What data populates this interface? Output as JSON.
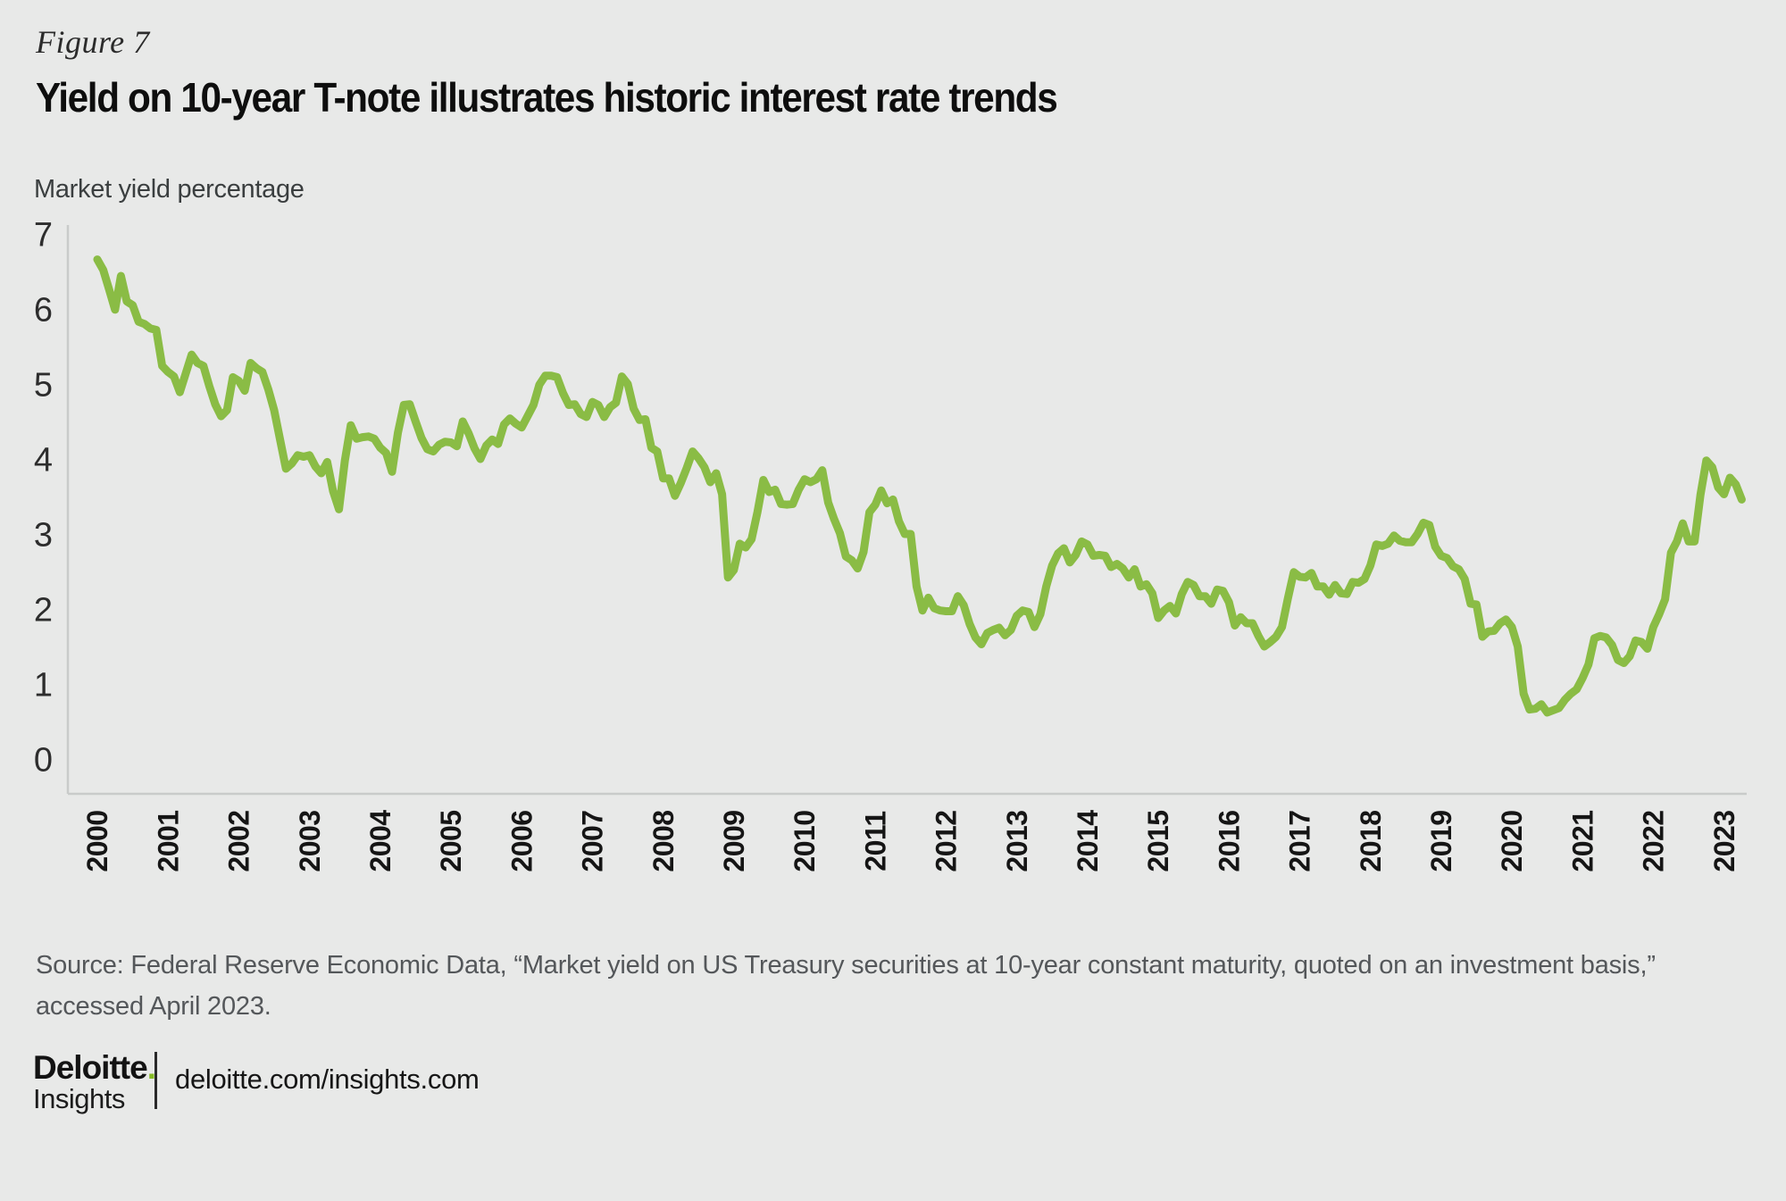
{
  "figure_label": "Figure 7",
  "title": "Yield on 10-year T-note illustrates historic interest rate trends",
  "y_axis_title": "Market yield percentage",
  "source_line1": "Source: Federal Reserve Economic Data, “Market yield on US Treasury securities at 10-year constant maturity, quoted on an investment basis,”",
  "source_line2": "accessed April 2023.",
  "footer": {
    "brand": "Deloitte",
    "brand_dot": ".",
    "brand_sub": "Insights",
    "url": "deloitte.com/insights.com"
  },
  "colors": {
    "background": "#E8E9E8",
    "line": "#8ABC45",
    "axis": "#C9CBCA",
    "brand_dot_green": "#86BC25"
  },
  "chart_data": {
    "type": "line",
    "title": "Yield on 10-year T-note illustrates historic interest rate trends",
    "ylabel": "Market yield percentage",
    "xlabel": "",
    "frequency": "monthly",
    "x_start": "2000-01",
    "x_end": "2023-04",
    "ylim": [
      0,
      7
    ],
    "yticks": [
      0,
      1,
      2,
      3,
      4,
      5,
      6,
      7
    ],
    "grid": false,
    "legend": "none",
    "years": [
      2000,
      2001,
      2002,
      2003,
      2004,
      2005,
      2006,
      2007,
      2008,
      2009,
      2010,
      2011,
      2012,
      2013,
      2014,
      2015,
      2016,
      2017,
      2018,
      2019,
      2020,
      2021,
      2022,
      2023
    ],
    "line_color": "#8ABC45",
    "series": [
      {
        "name": "Market yield on US Treasury securities at 10-year constant maturity (%)",
        "values": [
          6.66,
          6.52,
          6.26,
          5.99,
          6.44,
          6.1,
          6.05,
          5.83,
          5.8,
          5.74,
          5.72,
          5.24,
          5.16,
          5.1,
          4.89,
          5.14,
          5.39,
          5.28,
          5.24,
          4.97,
          4.73,
          4.57,
          4.65,
          5.09,
          5.04,
          4.91,
          5.28,
          5.21,
          5.16,
          4.93,
          4.65,
          4.26,
          3.87,
          3.94,
          4.05,
          4.03,
          4.05,
          3.9,
          3.81,
          3.96,
          3.57,
          3.33,
          3.98,
          4.45,
          4.27,
          4.29,
          4.3,
          4.27,
          4.15,
          4.08,
          3.83,
          4.35,
          4.72,
          4.73,
          4.5,
          4.28,
          4.13,
          4.1,
          4.19,
          4.23,
          4.22,
          4.17,
          4.5,
          4.34,
          4.14,
          4.0,
          4.18,
          4.26,
          4.2,
          4.46,
          4.54,
          4.47,
          4.42,
          4.57,
          4.72,
          4.99,
          5.11,
          5.11,
          5.09,
          4.88,
          4.72,
          4.73,
          4.6,
          4.56,
          4.76,
          4.72,
          4.56,
          4.69,
          4.75,
          5.1,
          5.0,
          4.67,
          4.52,
          4.53,
          4.15,
          4.1,
          3.74,
          3.74,
          3.51,
          3.68,
          3.88,
          4.1,
          4.01,
          3.89,
          3.69,
          3.81,
          3.53,
          2.42,
          2.52,
          2.87,
          2.82,
          2.93,
          3.29,
          3.72,
          3.56,
          3.59,
          3.4,
          3.39,
          3.4,
          3.59,
          3.73,
          3.69,
          3.73,
          3.85,
          3.42,
          3.2,
          3.01,
          2.7,
          2.65,
          2.54,
          2.76,
          3.29,
          3.39,
          3.58,
          3.41,
          3.46,
          3.17,
          3.0,
          3.0,
          2.3,
          1.98,
          2.15,
          2.01,
          1.98,
          1.97,
          1.97,
          2.17,
          2.05,
          1.8,
          1.62,
          1.53,
          1.68,
          1.72,
          1.75,
          1.65,
          1.72,
          1.91,
          1.98,
          1.96,
          1.76,
          1.93,
          2.3,
          2.58,
          2.74,
          2.81,
          2.62,
          2.72,
          2.9,
          2.86,
          2.71,
          2.72,
          2.71,
          2.56,
          2.6,
          2.54,
          2.42,
          2.53,
          2.3,
          2.33,
          2.21,
          1.88,
          1.98,
          2.04,
          1.94,
          2.2,
          2.36,
          2.32,
          2.17,
          2.17,
          2.07,
          2.26,
          2.24,
          2.09,
          1.78,
          1.89,
          1.81,
          1.81,
          1.64,
          1.5,
          1.56,
          1.63,
          1.76,
          2.14,
          2.49,
          2.43,
          2.42,
          2.48,
          2.3,
          2.3,
          2.19,
          2.32,
          2.21,
          2.2,
          2.36,
          2.35,
          2.4,
          2.58,
          2.86,
          2.84,
          2.87,
          2.98,
          2.91,
          2.89,
          2.89,
          3.0,
          3.15,
          3.12,
          2.83,
          2.71,
          2.68,
          2.57,
          2.53,
          2.4,
          2.07,
          2.06,
          1.63,
          1.7,
          1.71,
          1.81,
          1.86,
          1.76,
          1.5,
          0.87,
          0.66,
          0.67,
          0.73,
          0.62,
          0.65,
          0.68,
          0.79,
          0.87,
          0.93,
          1.08,
          1.26,
          1.61,
          1.64,
          1.62,
          1.52,
          1.32,
          1.28,
          1.37,
          1.58,
          1.56,
          1.47,
          1.76,
          1.93,
          2.13,
          2.75,
          2.9,
          3.14,
          2.9,
          2.9,
          3.52,
          3.98,
          3.89,
          3.62,
          3.53,
          3.75,
          3.66,
          3.46
        ]
      }
    ]
  }
}
